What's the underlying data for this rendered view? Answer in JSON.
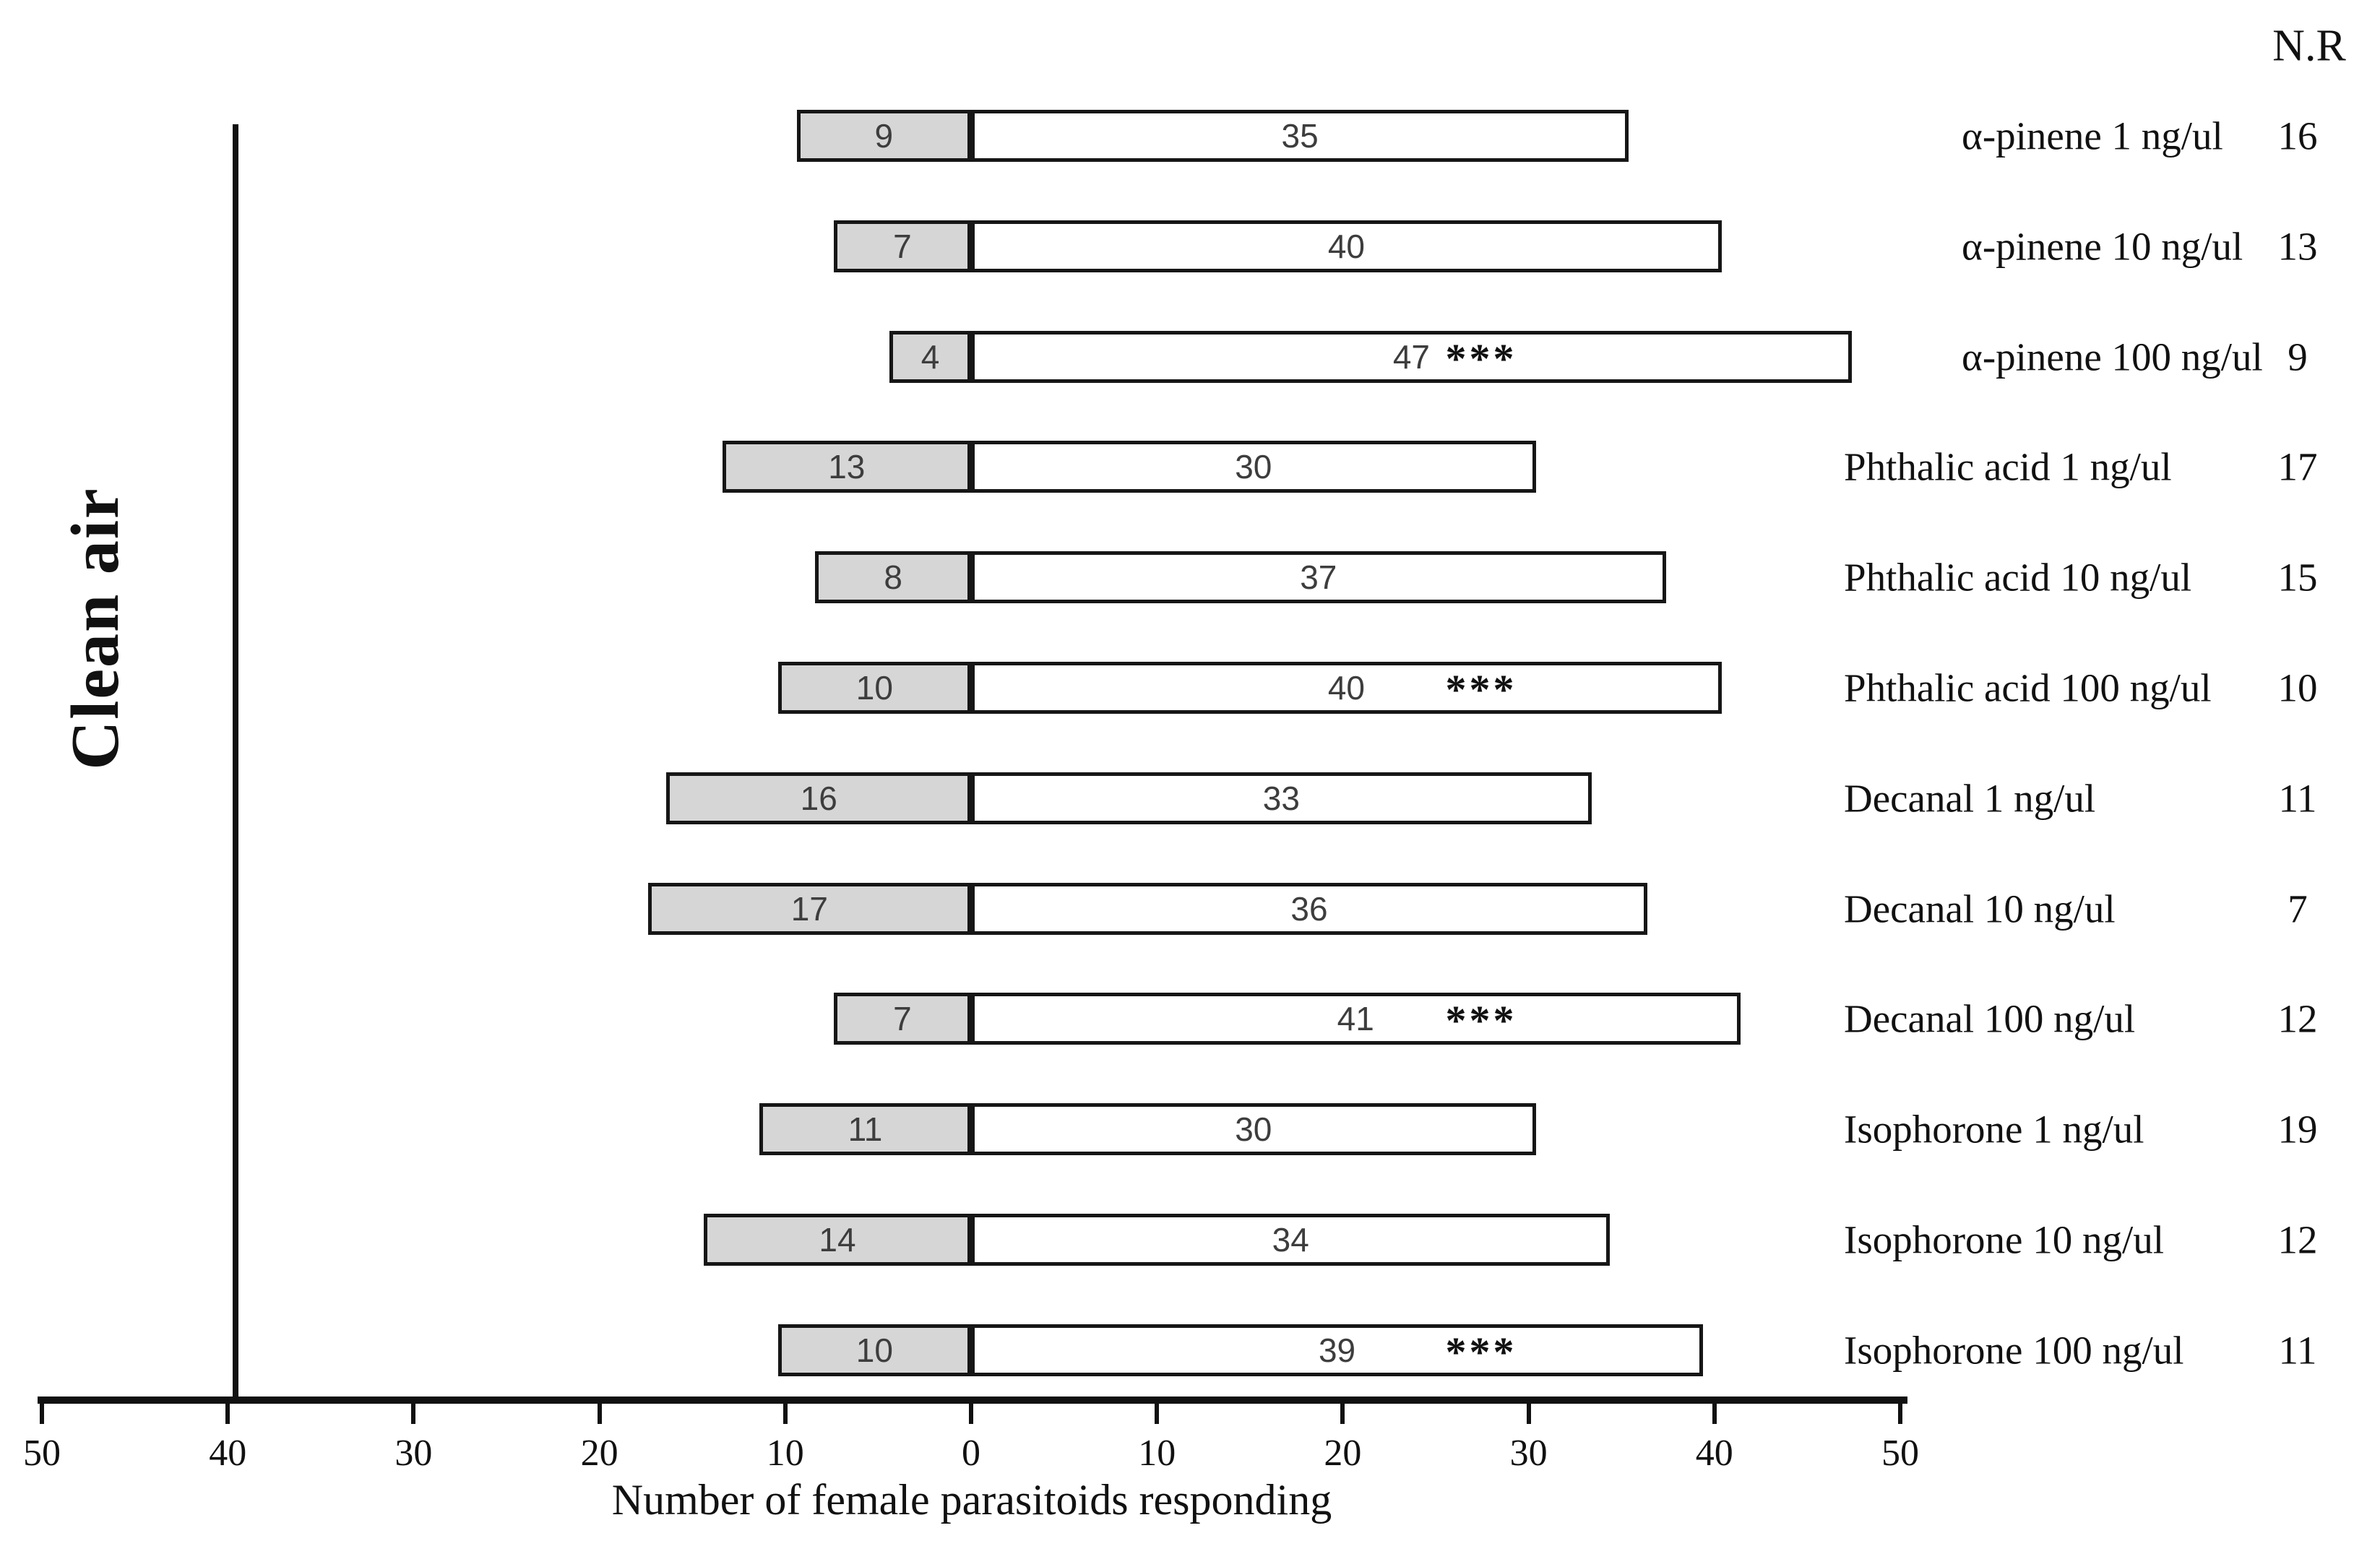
{
  "figure": {
    "clean_air_label": "Clean air",
    "nr_header": "N.R",
    "x_axis_title": "Number of female parasitoids responding"
  },
  "chart_data": {
    "type": "bar",
    "orientation": "horizontal-diverging",
    "xlabel": "Number of female parasitoids responding",
    "left_side_label": "Clean air",
    "right_column_header": "N.R",
    "xlim": [
      -50,
      50
    ],
    "tick_labels": [
      "50",
      "40",
      "30",
      "20",
      "10",
      "0",
      "10",
      "20",
      "30",
      "40",
      "50"
    ],
    "grid": false,
    "legend": "none",
    "significance_marker": "***",
    "colors": {
      "clean_air_bar": "#d6d6d6",
      "treatment_bar": "#ffffff",
      "bar_border": "#161616",
      "axis": "#111111"
    },
    "rows": [
      {
        "label": "α-pinene 1 ng/ul",
        "clean_air": 9,
        "treatment": 35,
        "nr": 16,
        "significance": ""
      },
      {
        "label": "α-pinene 10 ng/ul",
        "clean_air": 7,
        "treatment": 40,
        "nr": 13,
        "significance": ""
      },
      {
        "label": "α-pinene 100 ng/ul",
        "clean_air": 4,
        "treatment": 47,
        "nr": 9,
        "significance": "***"
      },
      {
        "label": "Phthalic acid 1 ng/ul",
        "clean_air": 13,
        "treatment": 30,
        "nr": 17,
        "significance": ""
      },
      {
        "label": "Phthalic acid 10 ng/ul",
        "clean_air": 8,
        "treatment": 37,
        "nr": 15,
        "significance": ""
      },
      {
        "label": "Phthalic acid 100 ng/ul",
        "clean_air": 10,
        "treatment": 40,
        "nr": 10,
        "significance": "***"
      },
      {
        "label": "Decanal 1 ng/ul",
        "clean_air": 16,
        "treatment": 33,
        "nr": 11,
        "significance": ""
      },
      {
        "label": "Decanal 10 ng/ul",
        "clean_air": 17,
        "treatment": 36,
        "nr": 7,
        "significance": ""
      },
      {
        "label": "Decanal 100 ng/ul",
        "clean_air": 7,
        "treatment": 41,
        "nr": 12,
        "significance": "***"
      },
      {
        "label": "Isophorone 1 ng/ul",
        "clean_air": 11,
        "treatment": 30,
        "nr": 19,
        "significance": ""
      },
      {
        "label": "Isophorone 10 ng/ul",
        "clean_air": 14,
        "treatment": 34,
        "nr": 12,
        "significance": ""
      },
      {
        "label": "Isophorone 100 ng/ul",
        "clean_air": 10,
        "treatment": 39,
        "nr": 11,
        "significance": "***"
      }
    ]
  }
}
